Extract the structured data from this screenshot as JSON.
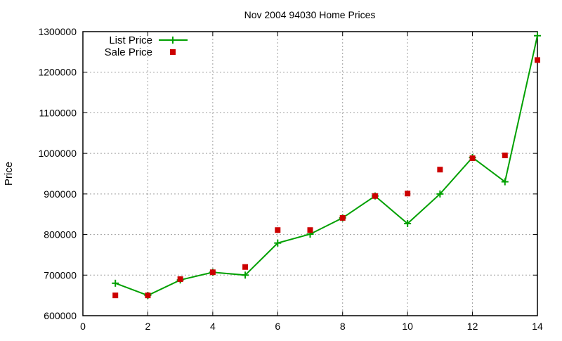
{
  "chart_data": {
    "type": "line",
    "title": "Nov 2004 94030 Home Prices",
    "xlabel": "",
    "ylabel": "Price",
    "xlim": [
      0,
      14
    ],
    "ylim": [
      600000,
      1300000
    ],
    "xticks": [
      0,
      2,
      4,
      6,
      8,
      10,
      12,
      14
    ],
    "yticks": [
      600000,
      700000,
      800000,
      900000,
      1000000,
      1100000,
      1200000,
      1300000
    ],
    "grid": true,
    "legend_position": "top-left",
    "series": [
      {
        "name": "List Price",
        "style": "linespoints",
        "marker": "plus",
        "color": "#00a000",
        "x": [
          1,
          2,
          3,
          4,
          5,
          6,
          7,
          8,
          9,
          10,
          11,
          12,
          13,
          14
        ],
        "values": [
          680000,
          650000,
          688000,
          707000,
          700000,
          779000,
          801000,
          841000,
          895000,
          827000,
          900000,
          990000,
          930000,
          1290000
        ]
      },
      {
        "name": "Sale Price",
        "style": "points",
        "marker": "square",
        "color": "#cc0000",
        "x": [
          1,
          2,
          3,
          4,
          5,
          6,
          7,
          8,
          9,
          10,
          11,
          12,
          13,
          14
        ],
        "values": [
          650000,
          650000,
          690000,
          707000,
          720000,
          811000,
          811000,
          841000,
          895000,
          901000,
          960000,
          988000,
          995000,
          1230000
        ]
      }
    ]
  }
}
